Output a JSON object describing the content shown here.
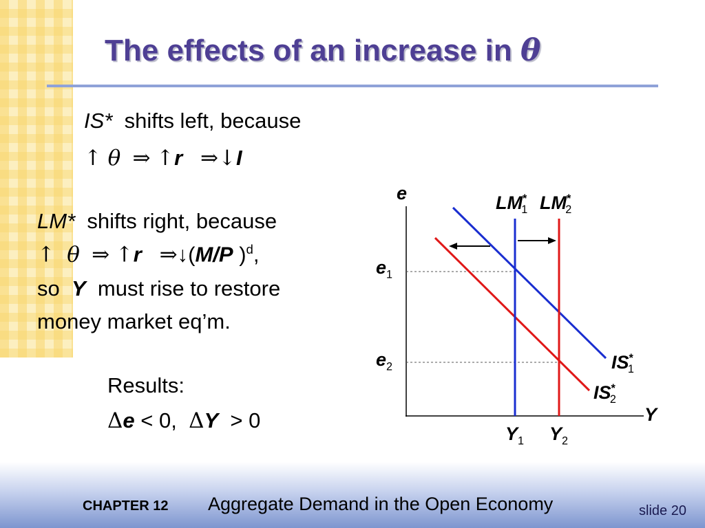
{
  "title": [
    "The effects of an increase in",
    "θ"
  ],
  "is_shift": {
    "line1": [
      "IS*",
      "shifts left, because"
    ],
    "line2": [
      "↑",
      "θ",
      "⇒",
      "↑",
      "r",
      "⇒",
      "↓",
      "I"
    ]
  },
  "lm_shift": {
    "line1": [
      "LM*",
      "shifts right, because"
    ],
    "line2": [
      "↑",
      "θ",
      "⇒",
      "↑",
      "r",
      "⇒",
      "↓(",
      "M/P",
      ")",
      "d",
      ","
    ],
    "line3": [
      "so",
      "Y",
      "must rise to restore"
    ],
    "line4": "money market eq’m."
  },
  "results": {
    "heading": "Results:",
    "line": [
      "Δ",
      "e",
      "< 0,",
      "Δ",
      "Y",
      "> 0"
    ]
  },
  "graph": {
    "y_axis": "e",
    "x_axis": "Y",
    "lm1": [
      "LM",
      "*",
      "1"
    ],
    "lm2": [
      "LM",
      "*",
      "2"
    ],
    "is1": [
      "IS",
      "*",
      "1"
    ],
    "is2": [
      "IS",
      "*",
      "2"
    ],
    "e1": [
      "e",
      "1"
    ],
    "e2": [
      "e",
      "2"
    ],
    "y1": [
      "Y",
      "1"
    ],
    "y2": [
      "Y",
      "2"
    ]
  },
  "footer": {
    "chapter": "CHAPTER 12",
    "subtitle": "Aggregate Demand in the Open Economy",
    "slide": "slide 20"
  }
}
